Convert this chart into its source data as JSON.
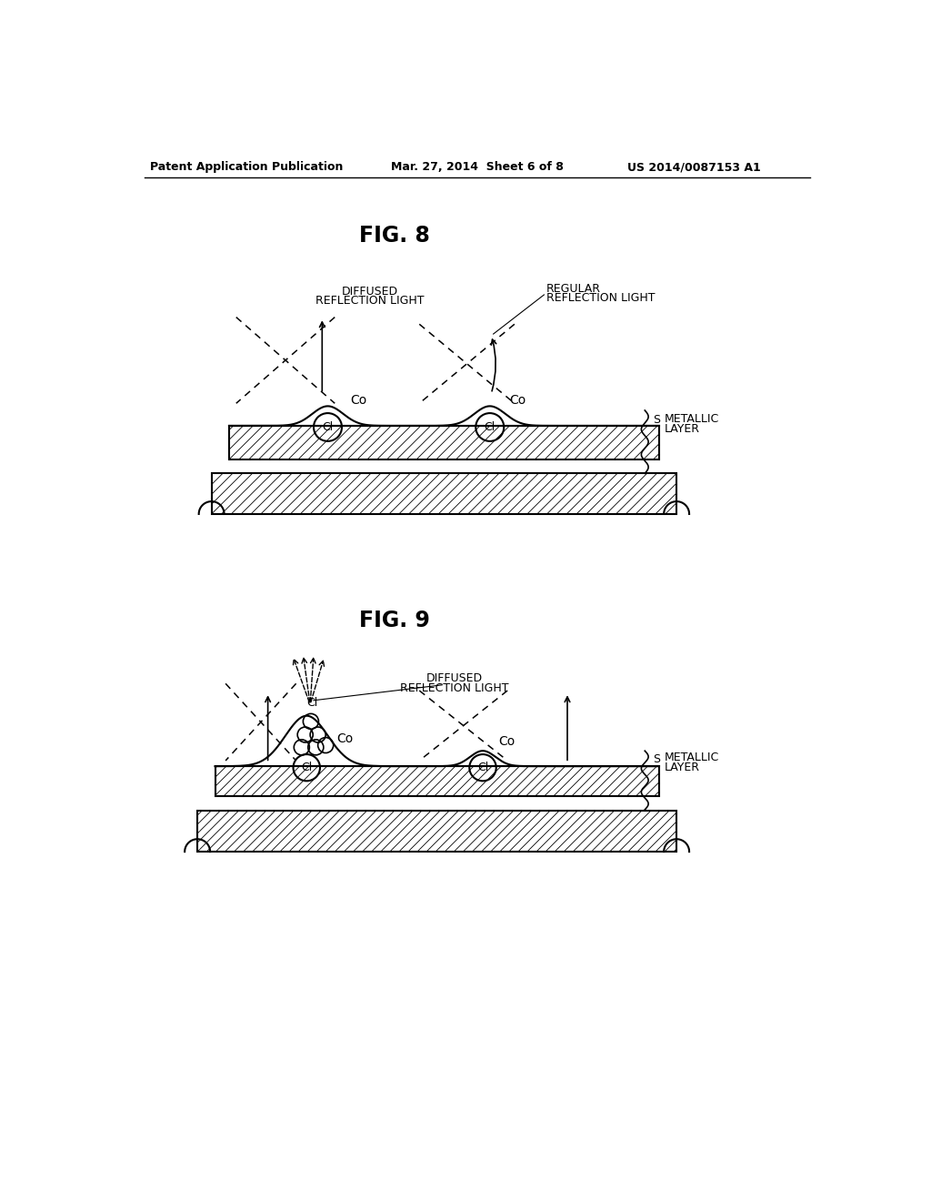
{
  "header_left": "Patent Application Publication",
  "header_mid": "Mar. 27, 2014  Sheet 6 of 8",
  "header_right": "US 2014/0087153 A1",
  "fig8_title": "FIG. 8",
  "fig9_title": "FIG. 9",
  "bg_color": "#ffffff",
  "line_color": "#000000"
}
